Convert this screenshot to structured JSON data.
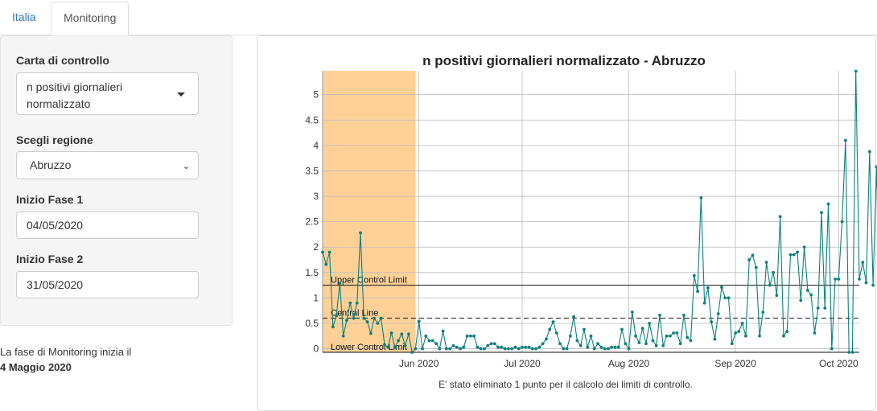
{
  "tabs": [
    "Italia",
    "Monitoring"
  ],
  "sidebar": {
    "chart_label": "Carta di controllo",
    "chart_value": "n positivi giornalieri normalizzato",
    "region_label": "Scegli regione",
    "region_value": "Abruzzo",
    "phase1_label": "Inizio Fase 1",
    "phase1_value": "04/05/2020",
    "phase2_label": "Inizio Fase 2",
    "phase2_value": "31/05/2020"
  },
  "note": {
    "text": "La fase di Monitoring inizia il",
    "date": "4 Maggio 2020"
  },
  "footer": "E' stato eliminato 1 punto per il calcolo dei limiti di controllo.",
  "colors": {
    "series": "#0d7f7f",
    "band": "#ffd197"
  },
  "chart_data": {
    "type": "line",
    "title": "n positivi giornalieri normalizzato - Abruzzo",
    "x_start": "2020-05-04",
    "x_end": "2020-10-07",
    "xticks": [
      {
        "date": "2020-06-01",
        "label": "Jun 2020"
      },
      {
        "date": "2020-07-01",
        "label": "Jul 2020"
      },
      {
        "date": "2020-08-01",
        "label": "Aug 2020"
      },
      {
        "date": "2020-09-01",
        "label": "Sep 2020"
      },
      {
        "date": "2020-10-01",
        "label": "Oct 2020"
      }
    ],
    "ylim": [
      -0.07,
      5.47
    ],
    "yticks": [
      0,
      0.5,
      1,
      1.5,
      2,
      2.5,
      3,
      3.5,
      4,
      4.5,
      5
    ],
    "ytick_labels": [
      "0",
      "0.5",
      "1",
      "1.5",
      "2",
      "2.5",
      "3",
      "3.5",
      "4",
      "4.5",
      "5"
    ],
    "phase_band": {
      "start": "2020-05-04",
      "end": "2020-05-31"
    },
    "lines": [
      {
        "name": "Upper Control Limit",
        "value": 1.25,
        "style": "solid"
      },
      {
        "name": "Central Line",
        "value": 0.6,
        "style": "dashed"
      },
      {
        "name": "Lower Control Limit",
        "value": -0.07,
        "style": "solid"
      }
    ],
    "series": [
      {
        "name": "n positivi",
        "start": "2020-05-04",
        "values": [
          1.9,
          1.66,
          1.9,
          0.43,
          0.65,
          1.29,
          0.25,
          0.56,
          0.9,
          0.6,
          0.9,
          2.28,
          0.6,
          0.53,
          0.3,
          0.6,
          0.5,
          0.6,
          0.08,
          0.03,
          0.31,
          0.03,
          0.16,
          0.29,
          0.06,
          0.29,
          -0.07,
          0.0,
          0.54,
          0.0,
          0.25,
          0.16,
          0.16,
          0.1,
          0.0,
          0.35,
          0.0,
          0.0,
          0.06,
          0.03,
          0.0,
          0.03,
          0.25,
          0.25,
          0.25,
          0.03,
          0.0,
          0.0,
          0.06,
          0.1,
          0.1,
          0.03,
          0.03,
          0.0,
          0.0,
          0.0,
          0.03,
          0.0,
          0.03,
          0.03,
          0.03,
          0.0,
          0.0,
          0.03,
          0.1,
          0.19,
          0.38,
          0.53,
          0.31,
          0.1,
          0.0,
          0.0,
          0.25,
          0.63,
          0.16,
          0.06,
          0.38,
          0.03,
          0.25,
          0.0,
          0.1,
          0.03,
          0.0,
          0.0,
          0.03,
          0.03,
          0.03,
          0.38,
          0.1,
          0.0,
          0.72,
          0.25,
          0.12,
          0.4,
          0.1,
          0.5,
          0.16,
          0.06,
          0.66,
          0.06,
          0.25,
          0.25,
          0.31,
          0.31,
          0.1,
          0.66,
          0.22,
          0.16,
          1.44,
          1.13,
          2.97,
          0.9,
          1.2,
          0.53,
          0.19,
          0.69,
          1.21,
          1.0,
          1.0,
          0.1,
          0.31,
          0.34,
          0.5,
          0.25,
          1.75,
          1.84,
          1.6,
          0.25,
          0.72,
          1.7,
          1.25,
          1.5,
          1.05,
          2.6,
          0.25,
          0.34,
          1.85,
          1.85,
          1.9,
          0.95,
          2.0,
          1.15,
          1.06,
          0.31,
          0.8,
          2.68,
          0.8,
          2.85,
          0.0,
          1.37,
          1.37,
          2.5,
          4.1,
          -0.07,
          -0.07,
          5.46,
          1.37,
          1.7,
          1.3,
          3.88,
          1.25,
          3.58,
          0.25,
          1.06,
          1.75,
          2.28,
          3.73,
          3.2,
          2.83,
          2.28,
          3.65
        ]
      }
    ]
  }
}
